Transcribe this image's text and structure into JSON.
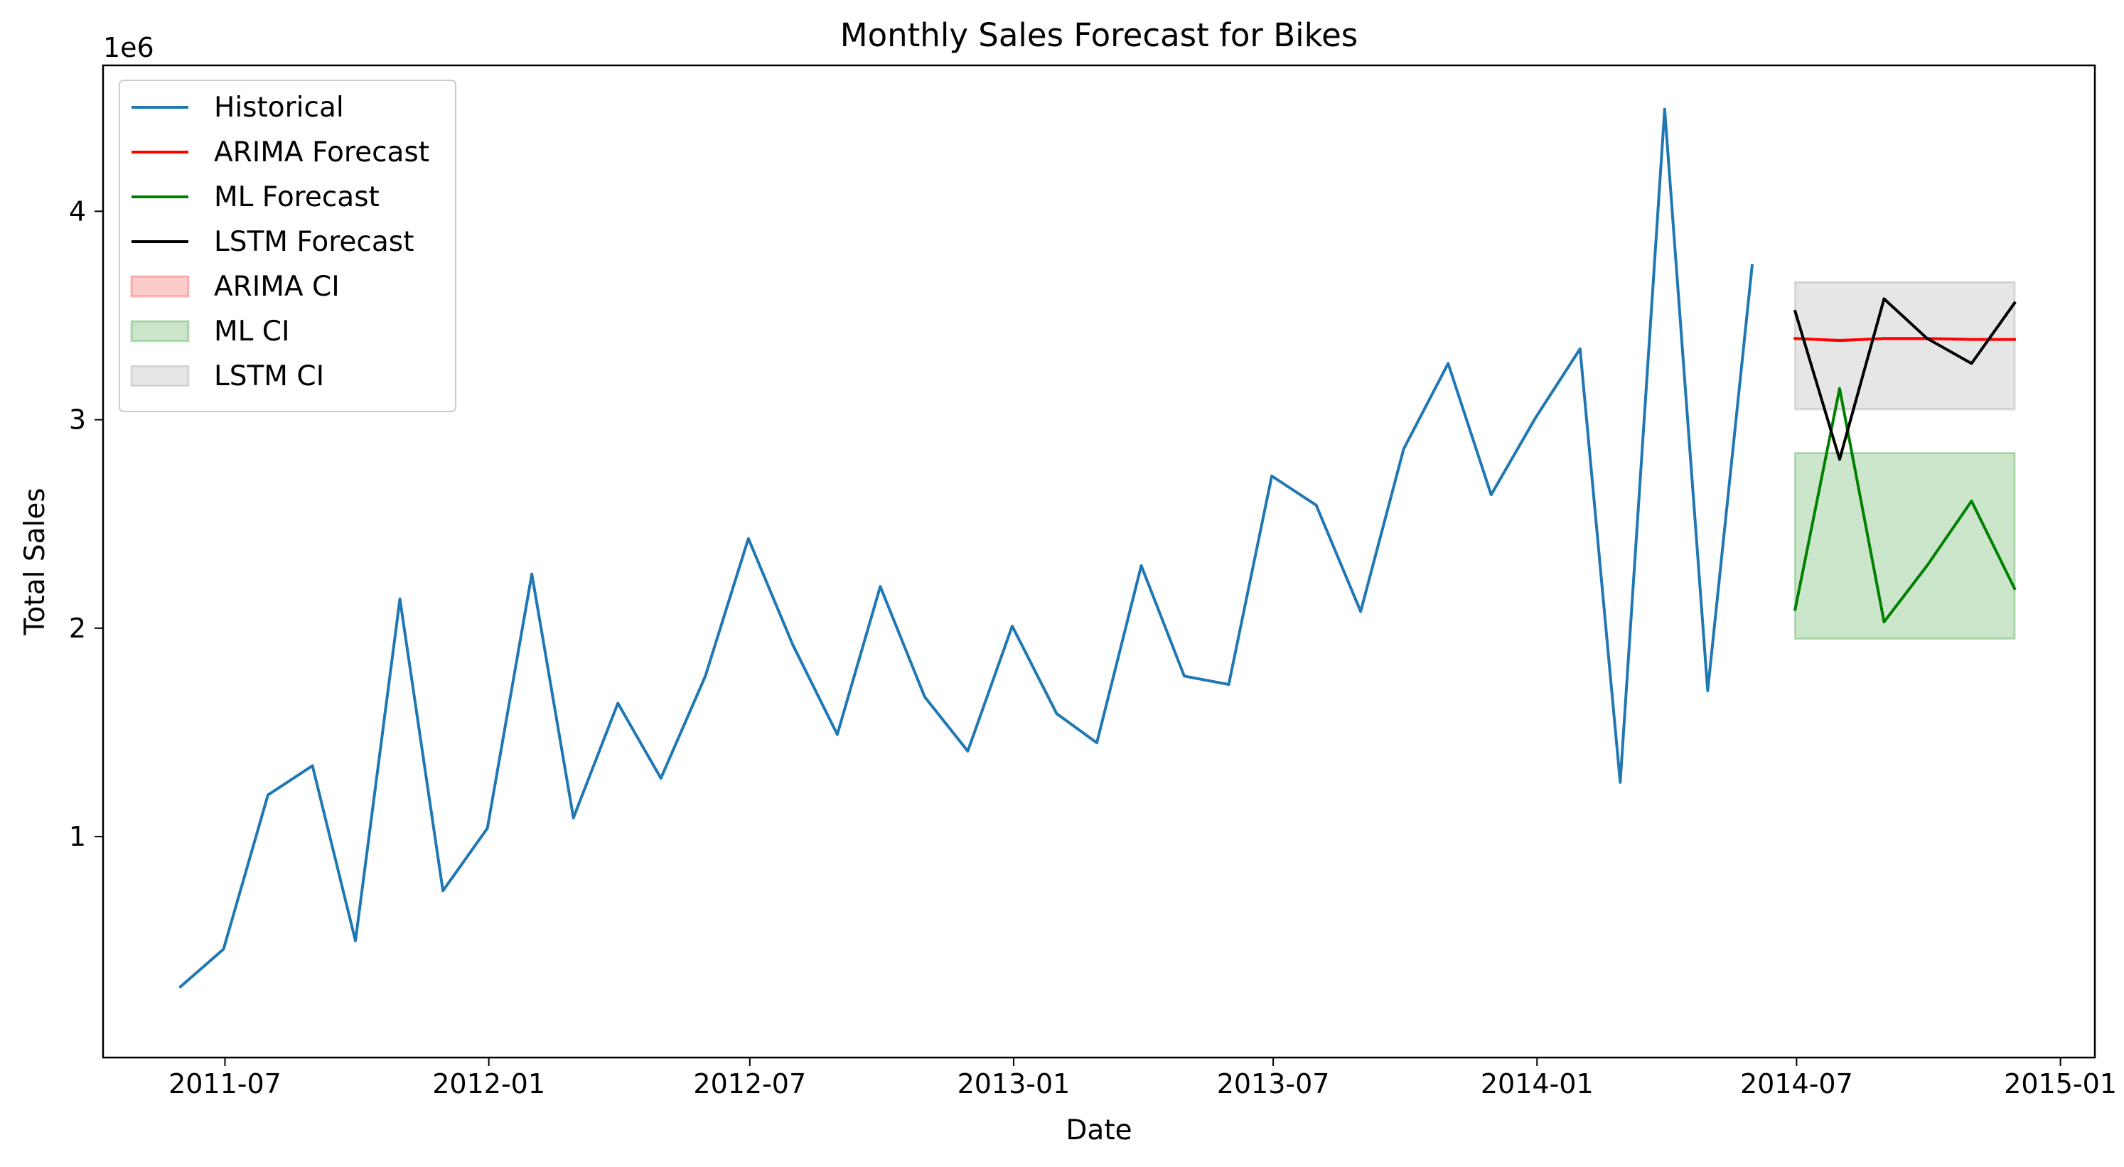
{
  "chart_data": {
    "type": "line",
    "title": "Monthly Sales Forecast for Bikes",
    "xlabel": "Date",
    "ylabel": "Total Sales",
    "y_offset_label": "1e6",
    "y_scale": 1000000,
    "xlim": [
      "2011-04-07",
      "2015-01-25"
    ],
    "ylim": [
      -60000,
      4700000
    ],
    "grid": false,
    "legend_position": "top-left",
    "x_ticks": [
      "2011-07",
      "2012-01",
      "2012-07",
      "2013-01",
      "2013-07",
      "2014-01",
      "2014-07",
      "2015-01"
    ],
    "y_ticks": [
      1,
      2,
      3,
      4
    ],
    "series": [
      {
        "name": "Historical",
        "kind": "line",
        "color": "#1f77b4",
        "x": [
          "2011-05-31",
          "2011-06-30",
          "2011-07-31",
          "2011-08-31",
          "2011-09-30",
          "2011-10-31",
          "2011-11-30",
          "2011-12-31",
          "2012-01-31",
          "2012-02-29",
          "2012-03-31",
          "2012-04-30",
          "2012-05-31",
          "2012-06-30",
          "2012-07-31",
          "2012-08-31",
          "2012-09-30",
          "2012-10-31",
          "2012-11-30",
          "2012-12-31",
          "2013-01-31",
          "2013-02-28",
          "2013-03-31",
          "2013-04-30",
          "2013-05-31",
          "2013-06-30",
          "2013-07-31",
          "2013-08-31",
          "2013-09-30",
          "2013-10-31",
          "2013-11-30",
          "2013-12-31",
          "2014-01-31",
          "2014-02-28",
          "2014-03-31",
          "2014-04-30",
          "2014-05-31"
        ],
        "values": [
          280000,
          460000,
          1200000,
          1340000,
          500000,
          2140000,
          740000,
          1040000,
          2260000,
          1090000,
          1640000,
          1280000,
          1770000,
          2430000,
          1920000,
          1490000,
          2200000,
          1670000,
          1410000,
          2010000,
          1590000,
          1450000,
          2300000,
          1770000,
          1730000,
          2730000,
          2590000,
          2080000,
          2860000,
          3270000,
          2640000,
          3010000,
          3340000,
          1260000,
          4490000,
          1700000,
          3740000
        ]
      },
      {
        "name": "ARIMA Forecast",
        "kind": "line",
        "color": "#ff0000",
        "x": [
          "2014-06-30",
          "2014-07-31",
          "2014-08-31",
          "2014-09-30",
          "2014-10-31",
          "2014-11-30"
        ],
        "values": [
          3390000,
          3380000,
          3390000,
          3390000,
          3385000,
          3385000
        ]
      },
      {
        "name": "ML Forecast",
        "kind": "line",
        "color": "#008000",
        "x": [
          "2014-06-30",
          "2014-07-31",
          "2014-08-31",
          "2014-09-30",
          "2014-10-31",
          "2014-11-30"
        ],
        "values": [
          2090000,
          3150000,
          2030000,
          2300000,
          2610000,
          2190000
        ]
      },
      {
        "name": "LSTM Forecast",
        "kind": "line",
        "color": "#000000",
        "x": [
          "2014-06-30",
          "2014-07-31",
          "2014-08-31",
          "2014-09-30",
          "2014-10-31",
          "2014-11-30"
        ],
        "values": [
          3520000,
          2810000,
          3580000,
          3390000,
          3270000,
          3560000
        ]
      },
      {
        "name": "ARIMA CI",
        "kind": "band",
        "color": "#ff0000",
        "x": [
          "2014-06-30",
          "2014-11-30"
        ],
        "lower": [
          3385000,
          3385000
        ],
        "upper": [
          3385000,
          3385000
        ]
      },
      {
        "name": "ML CI",
        "kind": "band",
        "color": "#008000",
        "x": [
          "2014-06-30",
          "2014-11-30"
        ],
        "lower": [
          1950000,
          1950000
        ],
        "upper": [
          2840000,
          2840000
        ]
      },
      {
        "name": "LSTM CI",
        "kind": "band",
        "color": "#808080",
        "x": [
          "2014-06-30",
          "2014-11-30"
        ],
        "lower": [
          3050000,
          3050000
        ],
        "upper": [
          3660000,
          3660000
        ]
      }
    ]
  }
}
